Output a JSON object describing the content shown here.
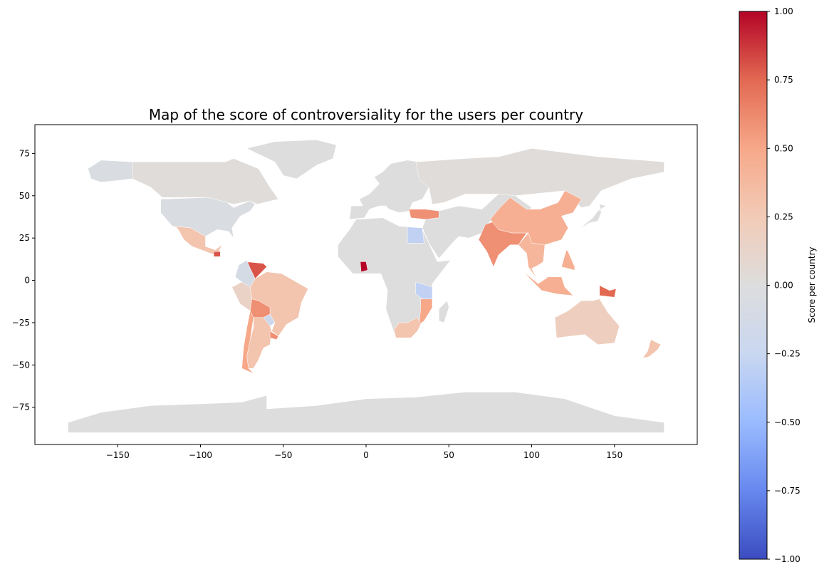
{
  "chart_data": {
    "type": "choropleth-map",
    "title": "Map of the score of controversiality for the users per country",
    "xlim": [
      -200,
      200
    ],
    "ylim": [
      -97,
      92
    ],
    "x_ticks": [
      -150,
      -100,
      -50,
      0,
      50,
      100,
      150
    ],
    "y_ticks": [
      75,
      50,
      25,
      0,
      -25,
      -50,
      -75
    ],
    "x_tick_labels": [
      "−150",
      "−100",
      "−50",
      "0",
      "50",
      "100",
      "150"
    ],
    "y_tick_labels": [
      "75",
      "50",
      "25",
      "0",
      "−25",
      "−50",
      "−75"
    ],
    "colorbar": {
      "label": "Score per country",
      "range": [
        -1.0,
        1.0
      ],
      "ticks": [
        1.0,
        0.75,
        0.5,
        0.25,
        0.0,
        -0.25,
        -0.5,
        -0.75,
        -1.0
      ],
      "tick_labels": [
        "1.00",
        "0.75",
        "0.50",
        "0.25",
        "0.00",
        "−0.25",
        "−0.50",
        "−0.75",
        "−1.00"
      ],
      "colormap": "coolwarm",
      "stops": [
        "#3b4cc0",
        "#6788ee",
        "#9abbff",
        "#c9d7f0",
        "#dddddd",
        "#f2cbb7",
        "#f7a889",
        "#e26952",
        "#b40426"
      ]
    },
    "regions": [
      {
        "name": "Antarctica",
        "value": 0.0
      },
      {
        "name": "Greenland",
        "value": 0.0
      },
      {
        "name": "Alaska",
        "value": -0.05
      },
      {
        "name": "Canada",
        "value": 0.02
      },
      {
        "name": "United States",
        "value": -0.05
      },
      {
        "name": "Mexico",
        "value": 0.3
      },
      {
        "name": "Guatemala",
        "value": 0.8
      },
      {
        "name": "Venezuela",
        "value": 0.8
      },
      {
        "name": "Colombia",
        "value": -0.1
      },
      {
        "name": "Brazil",
        "value": 0.3
      },
      {
        "name": "Peru",
        "value": 0.15
      },
      {
        "name": "Bolivia",
        "value": 0.6
      },
      {
        "name": "Paraguay",
        "value": -0.2
      },
      {
        "name": "Argentina",
        "value": 0.3
      },
      {
        "name": "Chile",
        "value": 0.5
      },
      {
        "name": "Uruguay",
        "value": 0.6
      },
      {
        "name": "Europe",
        "value": 0.0
      },
      {
        "name": "Turkey",
        "value": 0.6
      },
      {
        "name": "Russia",
        "value": 0.02
      },
      {
        "name": "Africa",
        "value": 0.0
      },
      {
        "name": "Ghana",
        "value": 1.0
      },
      {
        "name": "Egypt",
        "value": -0.3
      },
      {
        "name": "Tanzania",
        "value": -0.3
      },
      {
        "name": "Mozambique",
        "value": 0.5
      },
      {
        "name": "South Africa",
        "value": 0.3
      },
      {
        "name": "Middle East",
        "value": 0.0
      },
      {
        "name": "India",
        "value": 0.6
      },
      {
        "name": "China",
        "value": 0.45
      },
      {
        "name": "Southeast Asia",
        "value": 0.4
      },
      {
        "name": "Indonesia",
        "value": 0.45
      },
      {
        "name": "Papua New Guinea",
        "value": 0.75
      },
      {
        "name": "Philippines",
        "value": 0.45
      },
      {
        "name": "Australia",
        "value": 0.2
      },
      {
        "name": "New Zealand",
        "value": 0.3
      },
      {
        "name": "Madagascar",
        "value": 0.0
      },
      {
        "name": "Japan",
        "value": 0.0
      }
    ]
  }
}
